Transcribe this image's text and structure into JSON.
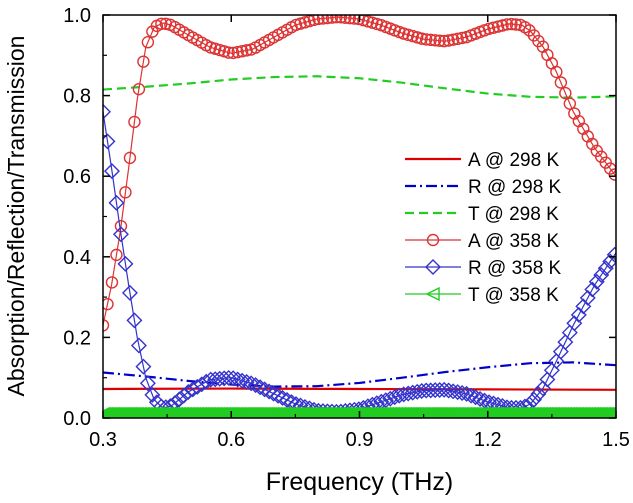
{
  "chart_data": {
    "type": "line",
    "title": "",
    "xlabel": "Frequency (THz)",
    "ylabel": "Absorption/Reflection/Transmission",
    "xlim": [
      0.3,
      1.5
    ],
    "ylim": [
      0.0,
      1.0
    ],
    "grid": false,
    "legend_position": "right",
    "x_ticks": [
      0.3,
      0.6,
      0.9,
      1.2,
      1.5
    ],
    "x_tick_labels": [
      "0.3",
      "0.6",
      "0.9",
      "1.2",
      "1.5"
    ],
    "y_ticks": [
      0.0,
      0.2,
      0.4,
      0.6,
      0.8,
      1.0
    ],
    "y_tick_labels": [
      "0.0",
      "0.2",
      "0.4",
      "0.6",
      "0.8",
      "1.0"
    ],
    "series": [
      {
        "name": "A @ 298 K",
        "color": "#dd0000",
        "line": "solid",
        "marker": "none",
        "x": [
          0.3,
          0.6,
          0.9,
          1.2,
          1.5
        ],
        "y": [
          0.072,
          0.073,
          0.072,
          0.071,
          0.07
        ]
      },
      {
        "name": "R @ 298 K",
        "color": "#0000cc",
        "line": "dashdot",
        "marker": "none",
        "x": [
          0.3,
          0.4,
          0.5,
          0.6,
          0.7,
          0.8,
          0.9,
          1.0,
          1.1,
          1.2,
          1.3,
          1.4,
          1.5
        ],
        "y": [
          0.113,
          0.103,
          0.092,
          0.083,
          0.078,
          0.079,
          0.087,
          0.1,
          0.114,
          0.126,
          0.136,
          0.138,
          0.131
        ]
      },
      {
        "name": "T @ 298 K",
        "color": "#22cc22",
        "line": "dashed",
        "marker": "none",
        "x": [
          0.3,
          0.4,
          0.5,
          0.6,
          0.7,
          0.8,
          0.9,
          1.0,
          1.1,
          1.2,
          1.3,
          1.4,
          1.5
        ],
        "y": [
          0.815,
          0.822,
          0.83,
          0.84,
          0.846,
          0.848,
          0.843,
          0.832,
          0.818,
          0.805,
          0.797,
          0.795,
          0.798
        ]
      },
      {
        "name": "A @ 358 K",
        "color": "#dd3333",
        "line": "solid",
        "marker": "circle",
        "x": [
          0.3,
          0.32,
          0.34,
          0.36,
          0.38,
          0.4,
          0.42,
          0.44,
          0.46,
          0.5,
          0.55,
          0.6,
          0.65,
          0.7,
          0.75,
          0.8,
          0.85,
          0.9,
          0.95,
          1.0,
          1.05,
          1.1,
          1.15,
          1.2,
          1.25,
          1.28,
          1.3,
          1.33,
          1.36,
          1.4,
          1.45,
          1.5
        ],
        "y": [
          0.23,
          0.33,
          0.46,
          0.62,
          0.79,
          0.92,
          0.97,
          0.98,
          0.975,
          0.95,
          0.92,
          0.905,
          0.915,
          0.945,
          0.975,
          0.99,
          0.995,
          0.99,
          0.975,
          0.955,
          0.94,
          0.935,
          0.945,
          0.965,
          0.978,
          0.975,
          0.96,
          0.92,
          0.86,
          0.76,
          0.67,
          0.6
        ]
      },
      {
        "name": "R @ 358 K",
        "color": "#3333cc",
        "line": "solid",
        "marker": "diamond",
        "x": [
          0.3,
          0.32,
          0.34,
          0.36,
          0.38,
          0.4,
          0.42,
          0.44,
          0.46,
          0.5,
          0.55,
          0.6,
          0.65,
          0.7,
          0.75,
          0.8,
          0.85,
          0.9,
          0.95,
          1.0,
          1.05,
          1.1,
          1.15,
          1.2,
          1.25,
          1.28,
          1.3,
          1.33,
          1.36,
          1.4,
          1.45,
          1.5
        ],
        "y": [
          0.76,
          0.62,
          0.47,
          0.33,
          0.2,
          0.1,
          0.045,
          0.025,
          0.03,
          0.065,
          0.095,
          0.1,
          0.085,
          0.06,
          0.035,
          0.018,
          0.015,
          0.022,
          0.04,
          0.058,
          0.068,
          0.07,
          0.06,
          0.04,
          0.025,
          0.025,
          0.035,
          0.075,
          0.14,
          0.23,
          0.33,
          0.41
        ]
      },
      {
        "name": "T @ 358 K",
        "color": "#22cc22",
        "line": "solid",
        "marker": "triangle-left",
        "x": [
          0.3,
          0.6,
          0.9,
          1.2,
          1.5
        ],
        "y": [
          0.01,
          0.01,
          0.01,
          0.01,
          0.01
        ]
      }
    ]
  }
}
